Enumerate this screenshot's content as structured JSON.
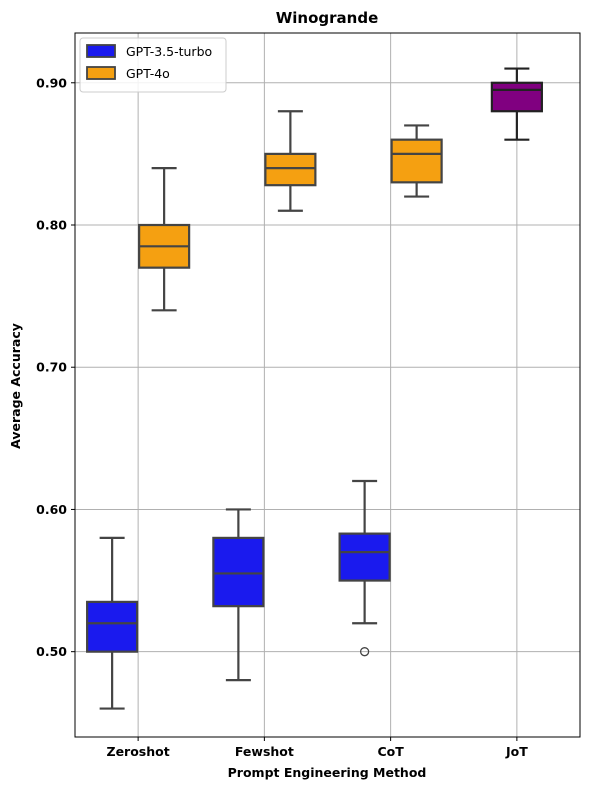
{
  "chart_data": {
    "type": "box",
    "title": "Winogrande",
    "xlabel": "Prompt Engineering Method",
    "ylabel": "Average Accuracy",
    "categories": [
      "Zeroshot",
      "Fewshot",
      "CoT",
      "JoT"
    ],
    "ylim": [
      0.44,
      0.935
    ],
    "yticks": [
      0.5,
      0.6,
      0.7,
      0.8,
      0.9
    ],
    "ytick_labels": [
      "0.50",
      "0.60",
      "0.70",
      "0.80",
      "0.90"
    ],
    "grid": true,
    "legend_position": "top-left",
    "series": [
      {
        "name": "GPT-3.5-turbo",
        "color": "#1a1aee",
        "boxes": [
          {
            "category": "Zeroshot",
            "whisker_low": 0.46,
            "q1": 0.5,
            "median": 0.52,
            "q3": 0.535,
            "whisker_high": 0.58,
            "outliers": []
          },
          {
            "category": "Fewshot",
            "whisker_low": 0.48,
            "q1": 0.532,
            "median": 0.555,
            "q3": 0.58,
            "whisker_high": 0.6,
            "outliers": []
          },
          {
            "category": "CoT",
            "whisker_low": 0.52,
            "q1": 0.55,
            "median": 0.57,
            "q3": 0.583,
            "whisker_high": 0.62,
            "outliers": [
              0.5
            ]
          }
        ]
      },
      {
        "name": "GPT-4o",
        "color": "#f5a011",
        "boxes": [
          {
            "category": "Zeroshot",
            "whisker_low": 0.74,
            "q1": 0.77,
            "median": 0.785,
            "q3": 0.8,
            "whisker_high": 0.84,
            "outliers": []
          },
          {
            "category": "Fewshot",
            "whisker_low": 0.81,
            "q1": 0.828,
            "median": 0.84,
            "q3": 0.85,
            "whisker_high": 0.88,
            "outliers": []
          },
          {
            "category": "CoT",
            "whisker_low": 0.82,
            "q1": 0.83,
            "median": 0.85,
            "q3": 0.86,
            "whisker_high": 0.87,
            "outliers": []
          }
        ]
      },
      {
        "color": "#800080",
        "boxes": [
          {
            "category": "JoT",
            "whisker_low": 0.86,
            "q1": 0.88,
            "median": 0.895,
            "q3": 0.9,
            "whisker_high": 0.91,
            "outliers": []
          }
        ]
      }
    ]
  }
}
